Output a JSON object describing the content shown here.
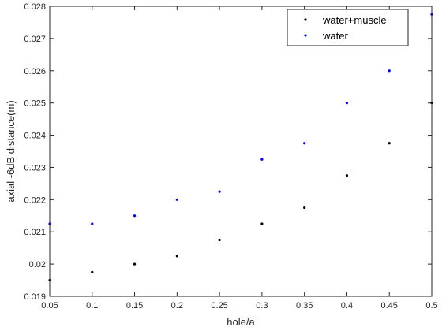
{
  "chart_data": {
    "type": "scatter",
    "title": "",
    "xlabel": "hole/a",
    "ylabel": "axial -6dB distance(m)",
    "xlim": [
      0.05,
      0.5
    ],
    "ylim": [
      0.019,
      0.028
    ],
    "x_ticks": [
      "0.05",
      "0.1",
      "0.15",
      "0.2",
      "0.25",
      "0.3",
      "0.35",
      "0.4",
      "0.45",
      "0.5"
    ],
    "y_ticks": [
      "0.019",
      "0.02",
      "0.021",
      "0.022",
      "0.023",
      "0.024",
      "0.025",
      "0.026",
      "0.027",
      "0.028"
    ],
    "grid": false,
    "legend_position": "top-right",
    "x": [
      0.05,
      0.1,
      0.15,
      0.2,
      0.25,
      0.3,
      0.35,
      0.4,
      0.45,
      0.5
    ],
    "series": [
      {
        "name": "water+muscle",
        "color": "#000000",
        "values": [
          0.0195,
          0.01975,
          0.02,
          0.02025,
          0.02075,
          0.02125,
          0.02175,
          0.02275,
          0.02375,
          0.025
        ]
      },
      {
        "name": "water",
        "color": "#0000ff",
        "values": [
          0.02125,
          0.02125,
          0.0215,
          0.022,
          0.02225,
          0.02325,
          0.02375,
          0.025,
          0.026,
          0.02775
        ]
      }
    ]
  }
}
